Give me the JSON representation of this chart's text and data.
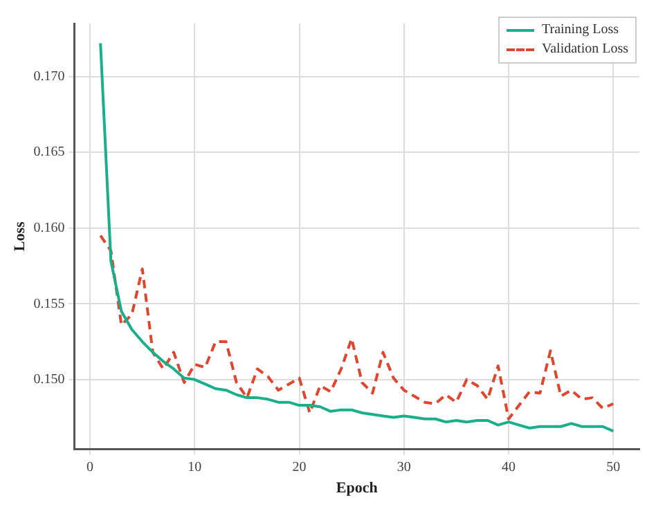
{
  "chart_data": {
    "type": "line",
    "xlabel": "Epoch",
    "ylabel": "Loss",
    "x": [
      1,
      2,
      3,
      4,
      5,
      6,
      7,
      8,
      9,
      10,
      11,
      12,
      13,
      14,
      15,
      16,
      17,
      18,
      19,
      20,
      21,
      22,
      23,
      24,
      25,
      26,
      27,
      28,
      29,
      30,
      31,
      32,
      33,
      34,
      35,
      36,
      37,
      38,
      39,
      40,
      41,
      42,
      43,
      44,
      45,
      46,
      47,
      48,
      49,
      50
    ],
    "series": [
      {
        "name": "Training Loss",
        "color": "#1aaf8b",
        "line_style": "solid",
        "values": [
          0.1722,
          0.1578,
          0.1545,
          0.1533,
          0.1525,
          0.1518,
          0.1512,
          0.1507,
          0.1501,
          0.15,
          0.1497,
          0.1494,
          0.1493,
          0.149,
          0.1488,
          0.1488,
          0.1487,
          0.1485,
          0.1485,
          0.1483,
          0.1483,
          0.1482,
          0.1479,
          0.148,
          0.148,
          0.1478,
          0.1477,
          0.1476,
          0.1475,
          0.1476,
          0.1475,
          0.1474,
          0.1474,
          0.1472,
          0.1473,
          0.1472,
          0.1473,
          0.1473,
          0.147,
          0.1472,
          0.147,
          0.1468,
          0.1469,
          0.1469,
          0.1469,
          0.1471,
          0.1469,
          0.1469,
          0.1469,
          0.1466
        ]
      },
      {
        "name": "Validation Loss",
        "color": "#e0452d",
        "line_style": "dashed",
        "values": [
          0.1595,
          0.1585,
          0.1536,
          0.1543,
          0.1573,
          0.1518,
          0.1507,
          0.1518,
          0.1498,
          0.151,
          0.1508,
          0.1525,
          0.1525,
          0.1498,
          0.1488,
          0.1507,
          0.1502,
          0.1493,
          0.1497,
          0.1501,
          0.1478,
          0.1496,
          0.1492,
          0.1507,
          0.1527,
          0.1498,
          0.1491,
          0.1518,
          0.1501,
          0.1493,
          0.1489,
          0.1485,
          0.1484,
          0.149,
          0.1485,
          0.15,
          0.1496,
          0.1487,
          0.1509,
          0.1474,
          0.1483,
          0.1492,
          0.1491,
          0.1519,
          0.1489,
          0.1493,
          0.1487,
          0.1488,
          0.1481,
          0.1484
        ]
      }
    ],
    "xlim": [
      -1.5,
      52.5
    ],
    "xticks": [
      0,
      10,
      20,
      30,
      40,
      50
    ],
    "ylim": [
      0.1454,
      0.1735
    ],
    "yticks": [
      {
        "value": 0.15,
        "label": "0.150"
      },
      {
        "value": 0.155,
        "label": "0.155"
      },
      {
        "value": 0.16,
        "label": "0.160"
      },
      {
        "value": 0.165,
        "label": "0.165"
      },
      {
        "value": 0.17,
        "label": "0.170"
      }
    ],
    "grid": true,
    "legend": "top right",
    "marker": "none"
  }
}
